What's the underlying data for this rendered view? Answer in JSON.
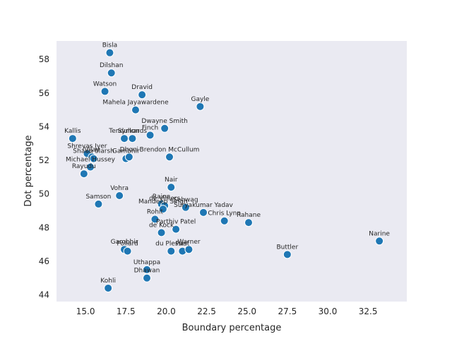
{
  "chart_data": {
    "type": "scatter",
    "title": "",
    "xlabel": "Boundary percentage",
    "ylabel": "Dot percentage",
    "xlim": [
      13.2,
      34.9
    ],
    "ylim": [
      43.6,
      59.1
    ],
    "xticks": [
      15.0,
      17.5,
      20.0,
      22.5,
      25.0,
      27.5,
      30.0,
      32.5
    ],
    "xtick_labels": [
      "15.0",
      "17.5",
      "20.0",
      "22.5",
      "25.0",
      "27.5",
      "30.0",
      "32.5"
    ],
    "yticks": [
      44,
      46,
      48,
      50,
      52,
      54,
      56,
      58
    ],
    "ytick_labels": [
      "44",
      "46",
      "48",
      "50",
      "52",
      "54",
      "56",
      "58"
    ],
    "grid": false,
    "background": "#eaeaf2",
    "point_color": "#1f77b4",
    "points": [
      {
        "label": "Bisla",
        "x": 16.5,
        "y": 58.4
      },
      {
        "label": "Dilshan",
        "x": 16.6,
        "y": 57.2
      },
      {
        "label": "Watson",
        "x": 16.2,
        "y": 56.1
      },
      {
        "label": "Dravid",
        "x": 18.5,
        "y": 55.9
      },
      {
        "label": "Gayle",
        "x": 22.1,
        "y": 55.2
      },
      {
        "label": "Mahela Jayawardene",
        "x": 18.1,
        "y": 55.0
      },
      {
        "label": "Dwayne Smith",
        "x": 19.9,
        "y": 53.9
      },
      {
        "label": "Tendulkar",
        "x": 17.4,
        "y": 53.3
      },
      {
        "label": "Symonds",
        "x": 17.9,
        "y": 53.3
      },
      {
        "label": "Finch",
        "x": 19.0,
        "y": 53.5
      },
      {
        "label": "Kallis",
        "x": 14.2,
        "y": 53.3
      },
      {
        "label": "Shreyas Iyer",
        "x": 15.1,
        "y": 52.4
      },
      {
        "label": "Vijay",
        "x": 15.4,
        "y": 52.2
      },
      {
        "label": "Shaun Marsh",
        "x": 15.5,
        "y": 52.1
      },
      {
        "label": "Gambhir",
        "x": 17.5,
        "y": 52.1
      },
      {
        "label": "Dhoni",
        "x": 17.7,
        "y": 52.2
      },
      {
        "label": "Brendon McCullum",
        "x": 20.2,
        "y": 52.2
      },
      {
        "label": "Michael Hussey",
        "x": 15.3,
        "y": 51.6
      },
      {
        "label": "Rayudu",
        "x": 14.9,
        "y": 51.2
      },
      {
        "label": "Nair",
        "x": 20.3,
        "y": 50.4
      },
      {
        "label": "Vohra",
        "x": 17.1,
        "y": 49.9
      },
      {
        "label": "Samson",
        "x": 15.8,
        "y": 49.4
      },
      {
        "label": "Raina",
        "x": 19.7,
        "y": 49.4
      },
      {
        "label": "de Villiers",
        "x": 19.9,
        "y": 49.3
      },
      {
        "label": "Mandeep Singh",
        "x": 19.8,
        "y": 49.1
      },
      {
        "label": "Sehwag",
        "x": 21.2,
        "y": 49.2
      },
      {
        "label": "Suryakumar Yadav",
        "x": 22.3,
        "y": 48.9
      },
      {
        "label": "Rohit",
        "x": 19.3,
        "y": 48.5
      },
      {
        "label": "Chris Lynn",
        "x": 23.6,
        "y": 48.4
      },
      {
        "label": "Rahane",
        "x": 25.1,
        "y": 48.3
      },
      {
        "label": "Parthiv Patel",
        "x": 20.6,
        "y": 47.9
      },
      {
        "label": "de Kock",
        "x": 19.7,
        "y": 47.7
      },
      {
        "label": "Narine",
        "x": 33.2,
        "y": 47.2
      },
      {
        "label": "Gambhir",
        "x": 17.4,
        "y": 46.7
      },
      {
        "label": "Pollard",
        "x": 17.6,
        "y": 46.6
      },
      {
        "label": "du Plessis",
        "x": 20.3,
        "y": 46.6
      },
      {
        "label": "Pant",
        "x": 21.0,
        "y": 46.6
      },
      {
        "label": "Warner",
        "x": 21.4,
        "y": 46.7
      },
      {
        "label": "Buttler",
        "x": 27.5,
        "y": 46.4
      },
      {
        "label": "Uthappa",
        "x": 18.8,
        "y": 45.5
      },
      {
        "label": "Dhawan",
        "x": 18.8,
        "y": 45.0
      },
      {
        "label": "Kohli",
        "x": 16.4,
        "y": 44.4
      }
    ]
  }
}
